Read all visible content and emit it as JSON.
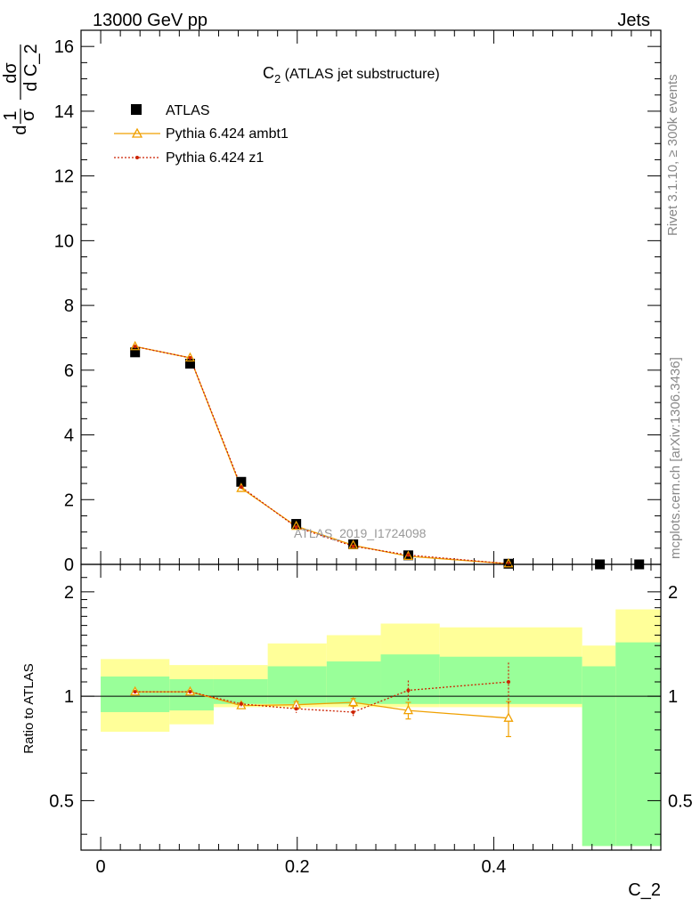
{
  "header": {
    "left": "13000 GeV pp",
    "right": "Jets"
  },
  "side_labels": {
    "rivet": "Rivet 3.1.10, ≥ 300k events",
    "mcplots": "mcplots.cern.ch [arXiv:1306.3436]"
  },
  "watermark": "ATLAS_2019_I1724098",
  "colors": {
    "data": "#000000",
    "ambt1": "#f0a000",
    "z1": "#cc2200",
    "band_inner": "#99ff99",
    "band_outer": "#ffff99"
  },
  "chart_data": [
    {
      "type": "line",
      "panel": "main",
      "title": "C",
      "title_sub": "2",
      "title_suffix": " (ATLAS jet substructure)",
      "ylabel": "1/σ dσ/d C_2",
      "ylabel_parts": {
        "d1": "d",
        "one": "1",
        "sigma": "σ",
        "dsig_num": "dσ",
        "dsig_den": "d C_2"
      },
      "xlim": [
        -0.02,
        0.57
      ],
      "ylim": [
        0,
        16.5
      ],
      "yticks": [
        0,
        2,
        4,
        6,
        8,
        10,
        12,
        14,
        16
      ],
      "yticklabels": [
        "0",
        "2",
        "4",
        "6",
        "8",
        "10",
        "12",
        "14",
        "16"
      ],
      "legend": [
        {
          "name": "ATLAS",
          "marker": "square"
        },
        {
          "name": "Pythia 6.424 ambt1",
          "marker": "triangle"
        },
        {
          "name": "Pythia 6.424 z1",
          "marker": "dot"
        }
      ],
      "series": [
        {
          "name": "ATLAS",
          "x": [
            0.035,
            0.091,
            0.143,
            0.199,
            0.257,
            0.313,
            0.415,
            0.508,
            0.548
          ],
          "y": [
            6.55,
            6.2,
            2.55,
            1.25,
            0.62,
            0.28,
            0.02,
            0.0,
            0.0
          ]
        },
        {
          "name": "Pythia 6.424 ambt1",
          "x": [
            0.035,
            0.091,
            0.143,
            0.199,
            0.257,
            0.313,
            0.415
          ],
          "y": [
            6.73,
            6.38,
            2.35,
            1.18,
            0.59,
            0.25,
            0.02
          ]
        },
        {
          "name": "Pythia 6.424 z1",
          "x": [
            0.035,
            0.091,
            0.143,
            0.199,
            0.257,
            0.313,
            0.415
          ],
          "y": [
            6.73,
            6.38,
            2.39,
            1.15,
            0.56,
            0.29,
            0.02
          ]
        }
      ]
    },
    {
      "type": "line",
      "panel": "ratio",
      "ylabel": "Ratio to ATLAS",
      "xlabel": "C_2",
      "xlim": [
        -0.02,
        0.57
      ],
      "ylim": [
        0.36,
        2.4
      ],
      "log_y": true,
      "yticks": [
        0.5,
        1,
        2
      ],
      "yticklabels": [
        "0.5",
        "1",
        "2"
      ],
      "xticks": [
        0,
        0.2,
        0.4
      ],
      "xticklabels": [
        "0",
        "0.2",
        "0.4"
      ],
      "bands": [
        {
          "x0": 0.0,
          "x1": 0.07,
          "inner": [
            0.9,
            1.14
          ],
          "outer": [
            0.79,
            1.28
          ]
        },
        {
          "x0": 0.07,
          "x1": 0.115,
          "inner": [
            0.91,
            1.12
          ],
          "outer": [
            0.83,
            1.23
          ]
        },
        {
          "x0": 0.115,
          "x1": 0.17,
          "inner": [
            0.95,
            1.12
          ],
          "outer": [
            0.93,
            1.23
          ]
        },
        {
          "x0": 0.17,
          "x1": 0.23,
          "inner": [
            0.95,
            1.22
          ],
          "outer": [
            0.93,
            1.42
          ]
        },
        {
          "x0": 0.23,
          "x1": 0.285,
          "inner": [
            0.95,
            1.26
          ],
          "outer": [
            0.93,
            1.5
          ]
        },
        {
          "x0": 0.285,
          "x1": 0.345,
          "inner": [
            0.95,
            1.32
          ],
          "outer": [
            0.93,
            1.62
          ]
        },
        {
          "x0": 0.345,
          "x1": 0.49,
          "inner": [
            0.95,
            1.3
          ],
          "outer": [
            0.93,
            1.58
          ]
        },
        {
          "x0": 0.49,
          "x1": 0.524,
          "inner": [
            0.37,
            1.22
          ],
          "outer": [
            0.37,
            1.4
          ]
        },
        {
          "x0": 0.524,
          "x1": 0.57,
          "inner": [
            0.37,
            1.43
          ],
          "outer": [
            0.37,
            1.78
          ]
        }
      ],
      "series": [
        {
          "name": "Pythia 6.424 ambt1",
          "x": [
            0.035,
            0.091,
            0.143,
            0.199,
            0.257,
            0.313,
            0.415
          ],
          "y": [
            1.03,
            1.03,
            0.94,
            0.945,
            0.96,
            0.91,
            0.865
          ],
          "err": [
            0.01,
            0.01,
            0.015,
            0.02,
            0.025,
            0.05,
            0.1
          ]
        },
        {
          "name": "Pythia 6.424 z1",
          "x": [
            0.035,
            0.091,
            0.143,
            0.199,
            0.257,
            0.313,
            0.415
          ],
          "y": [
            1.03,
            1.03,
            0.95,
            0.92,
            0.9,
            1.04,
            1.1
          ],
          "err": [
            0.01,
            0.01,
            0.015,
            0.025,
            0.03,
            0.07,
            0.15
          ]
        }
      ]
    }
  ]
}
